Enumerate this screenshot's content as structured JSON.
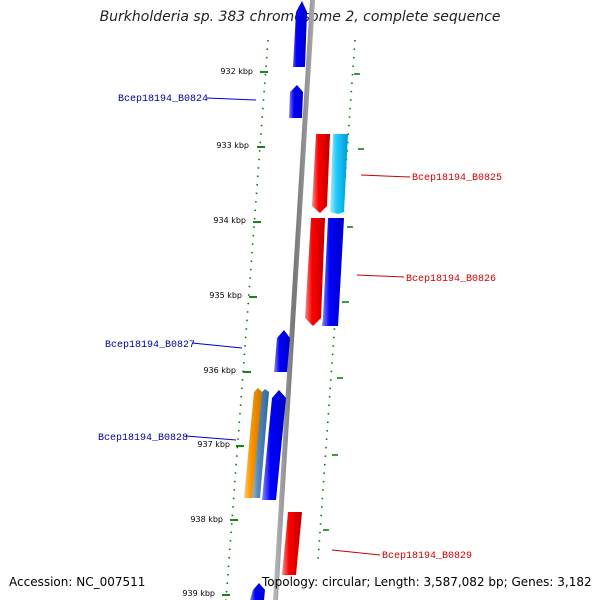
{
  "title": "Burkholderia sp. 383 chromosome 2, complete sequence",
  "footer": {
    "accession": "Accession: NC_007511",
    "topology": "Topology: circular; Length: 3,587,082 bp; Genes: 3,182"
  },
  "colors": {
    "forward": "#0000ff",
    "reverse": "#ff0000",
    "cyan": "#22ccff",
    "orange": "#ff9900",
    "steel": "#5588bb",
    "tick": "#007700",
    "backbone": "#888888",
    "forward_label": "#000099",
    "reverse_label": "#cc0000"
  },
  "scale_ticks": [
    "932 kbp",
    "933 kbp",
    "934 kbp",
    "935 kbp",
    "936 kbp",
    "937 kbp",
    "938 kbp",
    "939 kbp"
  ],
  "gene_labels": [
    {
      "text": "Bcep18194_B0824",
      "strand": "forward"
    },
    {
      "text": "Bcep18194_B0825",
      "strand": "reverse"
    },
    {
      "text": "Bcep18194_B0826",
      "strand": "reverse"
    },
    {
      "text": "Bcep18194_B0827",
      "strand": "forward"
    },
    {
      "text": "Bcep18194_B0828",
      "strand": "forward"
    },
    {
      "text": "Bcep18194_B0829",
      "strand": "reverse"
    }
  ]
}
